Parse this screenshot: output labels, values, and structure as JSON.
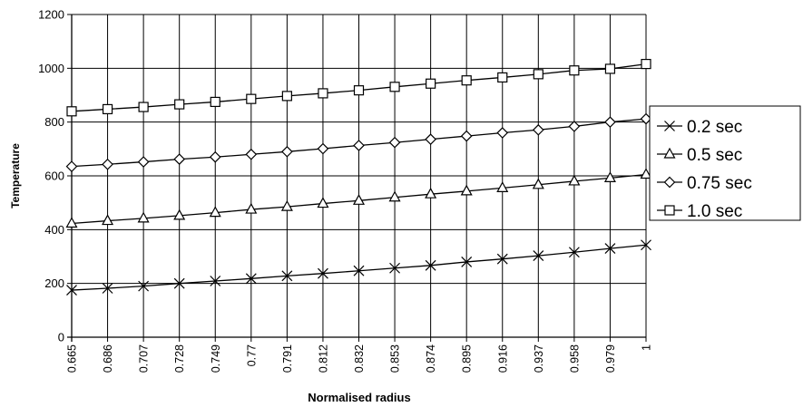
{
  "chart_data": {
    "type": "line",
    "title": "",
    "xlabel": "Normalised radius",
    "ylabel": "Temperature",
    "ylim": [
      0,
      1200
    ],
    "yticks": [
      "0",
      "200",
      "400",
      "600",
      "800",
      "1000",
      "1200"
    ],
    "categories": [
      "0.665",
      "0.686",
      "0.707",
      "0.728",
      "0.749",
      "0.77",
      "0.791",
      "0.812",
      "0.832",
      "0.853",
      "0.874",
      "0.895",
      "0.916",
      "0.937",
      "0.958",
      "0.979",
      "1"
    ],
    "grid": "horizontal and vertical",
    "legend_position": "right",
    "series": [
      {
        "name": "0.2 sec",
        "marker": "x",
        "values": [
          175,
          182,
          190,
          200,
          209,
          218,
          228,
          237,
          247,
          257,
          267,
          280,
          291,
          303,
          316,
          330,
          343
        ]
      },
      {
        "name": "0.5 sec",
        "marker": "triangle",
        "values": [
          423,
          433,
          442,
          452,
          463,
          475,
          485,
          497,
          508,
          520,
          532,
          543,
          555,
          567,
          580,
          592,
          605
        ]
      },
      {
        "name": "0.75 sec",
        "marker": "diamond",
        "values": [
          635,
          643,
          652,
          662,
          670,
          680,
          690,
          701,
          713,
          724,
          736,
          748,
          760,
          771,
          784,
          800,
          812
        ]
      },
      {
        "name": "1.0 sec",
        "marker": "square",
        "values": [
          840,
          848,
          856,
          866,
          875,
          886,
          897,
          907,
          918,
          931,
          943,
          955,
          966,
          978,
          992,
          998,
          1016
        ]
      }
    ]
  }
}
